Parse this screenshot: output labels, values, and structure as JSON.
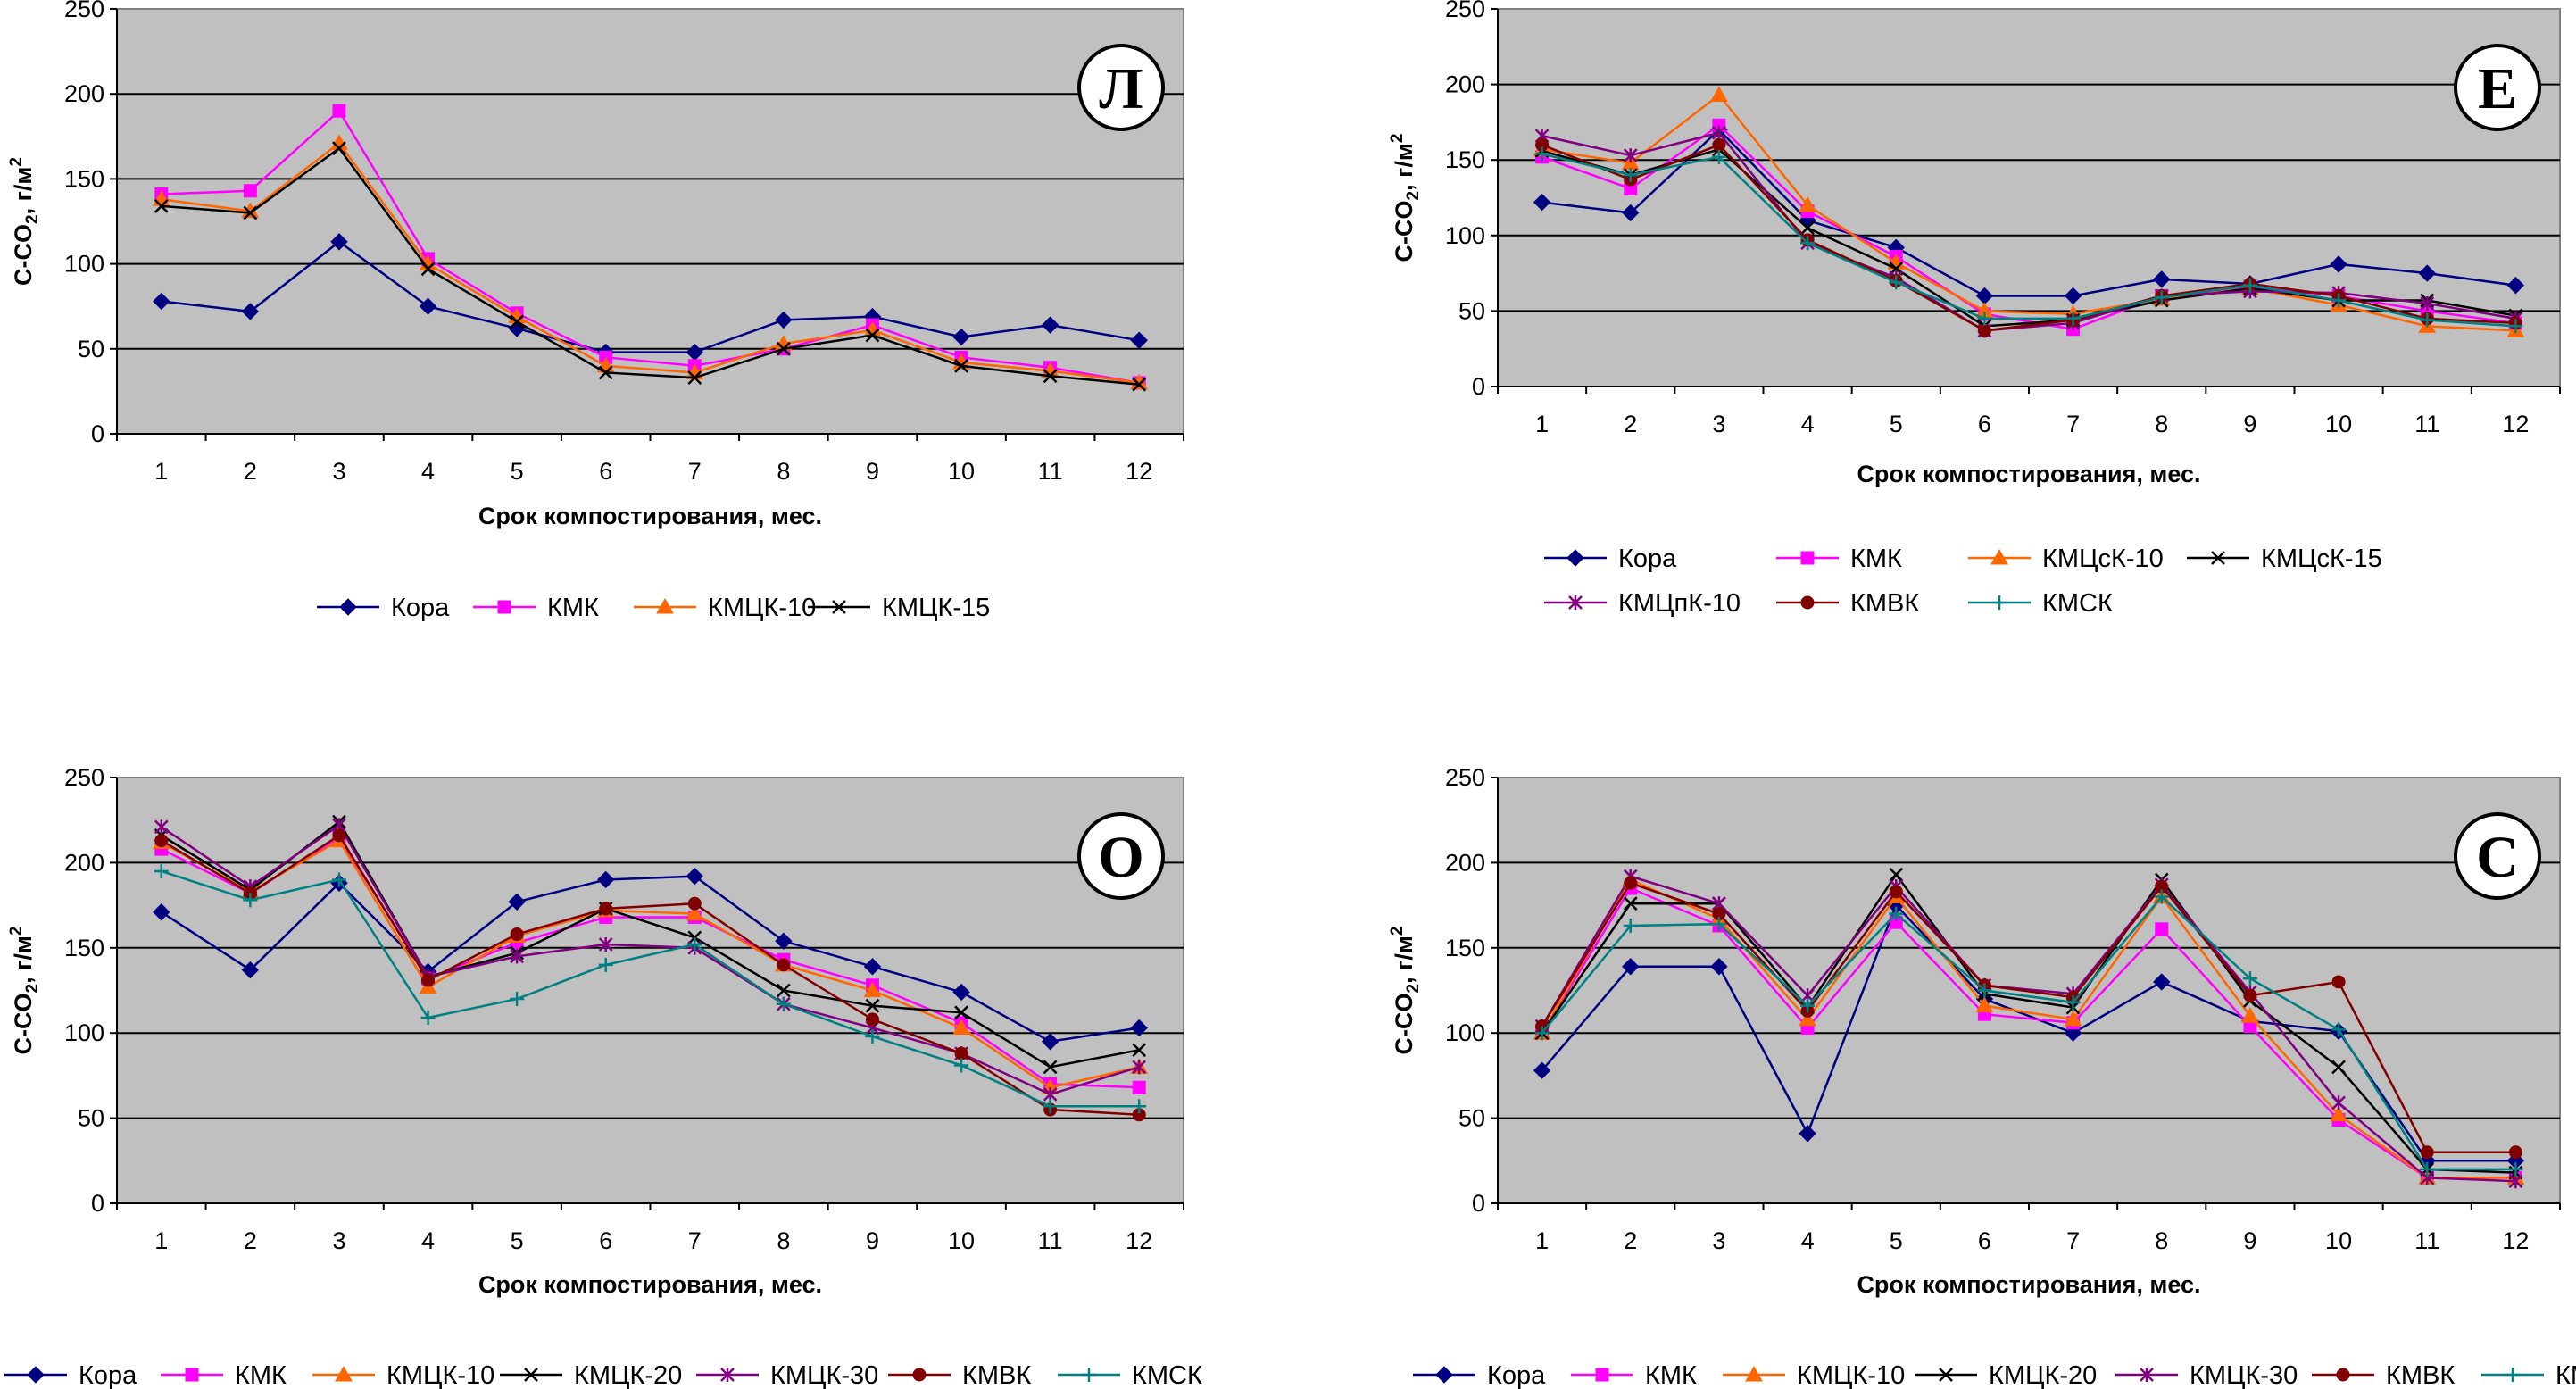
{
  "figure": {
    "xlabel": "Срок компостирования, мес.",
    "ylabel_main": "C-CO",
    "ylabel_sub": "2",
    "ylabel_unit": ", г/м",
    "ylabel_sup": "2"
  },
  "markers": {
    "Кора": "diamond",
    "КМК": "square",
    "КМЦК-10": "triangle",
    "КМЦсК-10": "triangle",
    "КМЦК-15": "x",
    "КМЦсК-15": "x",
    "КМЦК-20": "x",
    "КМЦК-30": "star",
    "КМЦпК-10": "star",
    "КМВК": "circle",
    "КМСК": "plus"
  },
  "chart_data": [
    {
      "type": "line",
      "panel": "Л",
      "xlabel": "Срок компостирования, мес.",
      "ylabel": "C-CO2, г/м2",
      "categories": [
        "1",
        "2",
        "3",
        "4",
        "5",
        "6",
        "7",
        "8",
        "9",
        "10",
        "11",
        "12"
      ],
      "yticks": [
        "0",
        "50",
        "100",
        "150",
        "200",
        "250"
      ],
      "ylim": [
        0,
        250
      ],
      "grid": true,
      "legend": "bottom",
      "series": [
        {
          "name": "Кора",
          "color": "#000080",
          "values": [
            78,
            72,
            113,
            75,
            62,
            48,
            48,
            67,
            69,
            57,
            64,
            55
          ]
        },
        {
          "name": "КМК",
          "color": "#FF00FF",
          "values": [
            141,
            143,
            190,
            103,
            71,
            45,
            40,
            50,
            64,
            45,
            39,
            30
          ]
        },
        {
          "name": "КМЦК-10",
          "color": "#FF6600",
          "values": [
            138,
            131,
            171,
            100,
            69,
            40,
            36,
            53,
            61,
            42,
            37,
            30
          ]
        },
        {
          "name": "КМЦК-15",
          "color": "#000000",
          "values": [
            134,
            130,
            168,
            97,
            66,
            36,
            33,
            50,
            58,
            40,
            34,
            29
          ]
        }
      ]
    },
    {
      "type": "line",
      "panel": "Е",
      "xlabel": "Срок компостирования, мес.",
      "ylabel": "C-CO2, г/м2",
      "categories": [
        "1",
        "2",
        "3",
        "4",
        "5",
        "6",
        "7",
        "8",
        "9",
        "10",
        "11",
        "12"
      ],
      "yticks": [
        "0",
        "50",
        "100",
        "150",
        "200",
        "250"
      ],
      "ylim": [
        0,
        250
      ],
      "grid": true,
      "legend": "bottom",
      "series": [
        {
          "name": "Кора",
          "color": "#000080",
          "values": [
            122,
            115,
            170,
            110,
            92,
            60,
            60,
            71,
            68,
            81,
            75,
            67
          ]
        },
        {
          "name": "КМК",
          "color": "#FF00FF",
          "values": [
            152,
            131,
            173,
            116,
            86,
            48,
            38,
            60,
            66,
            60,
            50,
            42
          ]
        },
        {
          "name": "КМЦсК-10",
          "color": "#FF6600",
          "values": [
            157,
            148,
            193,
            120,
            82,
            50,
            48,
            58,
            65,
            54,
            40,
            37
          ]
        },
        {
          "name": "КМЦсК-15",
          "color": "#000000",
          "values": [
            156,
            140,
            157,
            105,
            78,
            40,
            44,
            57,
            65,
            57,
            57,
            47
          ]
        },
        {
          "name": "КМЦпК-10",
          "color": "#800080",
          "values": [
            166,
            153,
            168,
            95,
            72,
            37,
            42,
            60,
            63,
            62,
            55,
            45
          ]
        },
        {
          "name": "КМВК",
          "color": "#800000",
          "values": [
            160,
            137,
            160,
            97,
            70,
            37,
            44,
            60,
            68,
            60,
            45,
            42
          ]
        },
        {
          "name": "КМСК",
          "color": "#008080",
          "values": [
            154,
            140,
            152,
            95,
            69,
            45,
            45,
            59,
            67,
            57,
            44,
            40
          ]
        }
      ]
    },
    {
      "type": "line",
      "panel": "О",
      "xlabel": "Срок компостирования, мес.",
      "ylabel": "C-CO2, г/м2",
      "categories": [
        "1",
        "2",
        "3",
        "4",
        "5",
        "6",
        "7",
        "8",
        "9",
        "10",
        "11",
        "12"
      ],
      "yticks": [
        "0",
        "50",
        "100",
        "150",
        "200",
        "250"
      ],
      "ylim": [
        0,
        250
      ],
      "grid": true,
      "legend": "bottom",
      "series": [
        {
          "name": "Кора",
          "color": "#000080",
          "values": [
            171,
            137,
            188,
            136,
            177,
            190,
            192,
            154,
            139,
            124,
            95,
            103
          ]
        },
        {
          "name": "КМК",
          "color": "#FF00FF",
          "values": [
            208,
            182,
            215,
            132,
            153,
            168,
            168,
            143,
            128,
            106,
            70,
            68
          ]
        },
        {
          "name": "КМЦК-10",
          "color": "#FF6600",
          "values": [
            212,
            183,
            213,
            127,
            157,
            172,
            170,
            140,
            125,
            103,
            68,
            80
          ]
        },
        {
          "name": "КМЦК-20",
          "color": "#000000",
          "values": [
            216,
            184,
            224,
            133,
            147,
            173,
            156,
            125,
            116,
            112,
            80,
            90
          ]
        },
        {
          "name": "КМЦК-30",
          "color": "#800080",
          "values": [
            221,
            186,
            222,
            133,
            145,
            152,
            150,
            117,
            103,
            88,
            64,
            80
          ]
        },
        {
          "name": "КМВК",
          "color": "#800000",
          "values": [
            213,
            182,
            216,
            131,
            158,
            173,
            176,
            140,
            108,
            88,
            55,
            52
          ]
        },
        {
          "name": "КМСК",
          "color": "#008080",
          "values": [
            195,
            178,
            190,
            109,
            120,
            140,
            152,
            117,
            98,
            81,
            57,
            57
          ]
        }
      ]
    },
    {
      "type": "line",
      "panel": "С",
      "xlabel": "Срок компостирования, мес.",
      "ylabel": "C-CO2, г/м2",
      "categories": [
        "1",
        "2",
        "3",
        "4",
        "5",
        "6",
        "7",
        "8",
        "9",
        "10",
        "11",
        "12"
      ],
      "yticks": [
        "0",
        "50",
        "100",
        "150",
        "200",
        "250"
      ],
      "ylim": [
        0,
        250
      ],
      "grid": true,
      "legend": "bottom",
      "series": [
        {
          "name": "Кора",
          "color": "#000080",
          "values": [
            78,
            139,
            139,
            41,
            175,
            120,
            100,
            130,
            107,
            101,
            25,
            25
          ]
        },
        {
          "name": "КМК",
          "color": "#FF00FF",
          "values": [
            100,
            185,
            163,
            103,
            165,
            111,
            106,
            161,
            104,
            49,
            15,
            15
          ]
        },
        {
          "name": "КМЦК-10",
          "color": "#FF6600",
          "values": [
            100,
            190,
            167,
            108,
            180,
            116,
            108,
            180,
            110,
            52,
            15,
            15
          ]
        },
        {
          "name": "КМЦК-20",
          "color": "#000000",
          "values": [
            100,
            176,
            176,
            115,
            193,
            123,
            115,
            190,
            119,
            80,
            20,
            18
          ]
        },
        {
          "name": "КМЦК-30",
          "color": "#800080",
          "values": [
            104,
            192,
            176,
            122,
            186,
            128,
            123,
            187,
            124,
            59,
            15,
            13
          ]
        },
        {
          "name": "КМВК",
          "color": "#800000",
          "values": [
            104,
            188,
            170,
            113,
            183,
            128,
            121,
            186,
            122,
            130,
            30,
            30
          ]
        },
        {
          "name": "КМСК",
          "color": "#008080",
          "values": [
            100,
            163,
            164,
            116,
            170,
            125,
            118,
            180,
            132,
            102,
            20,
            20
          ]
        }
      ]
    }
  ]
}
